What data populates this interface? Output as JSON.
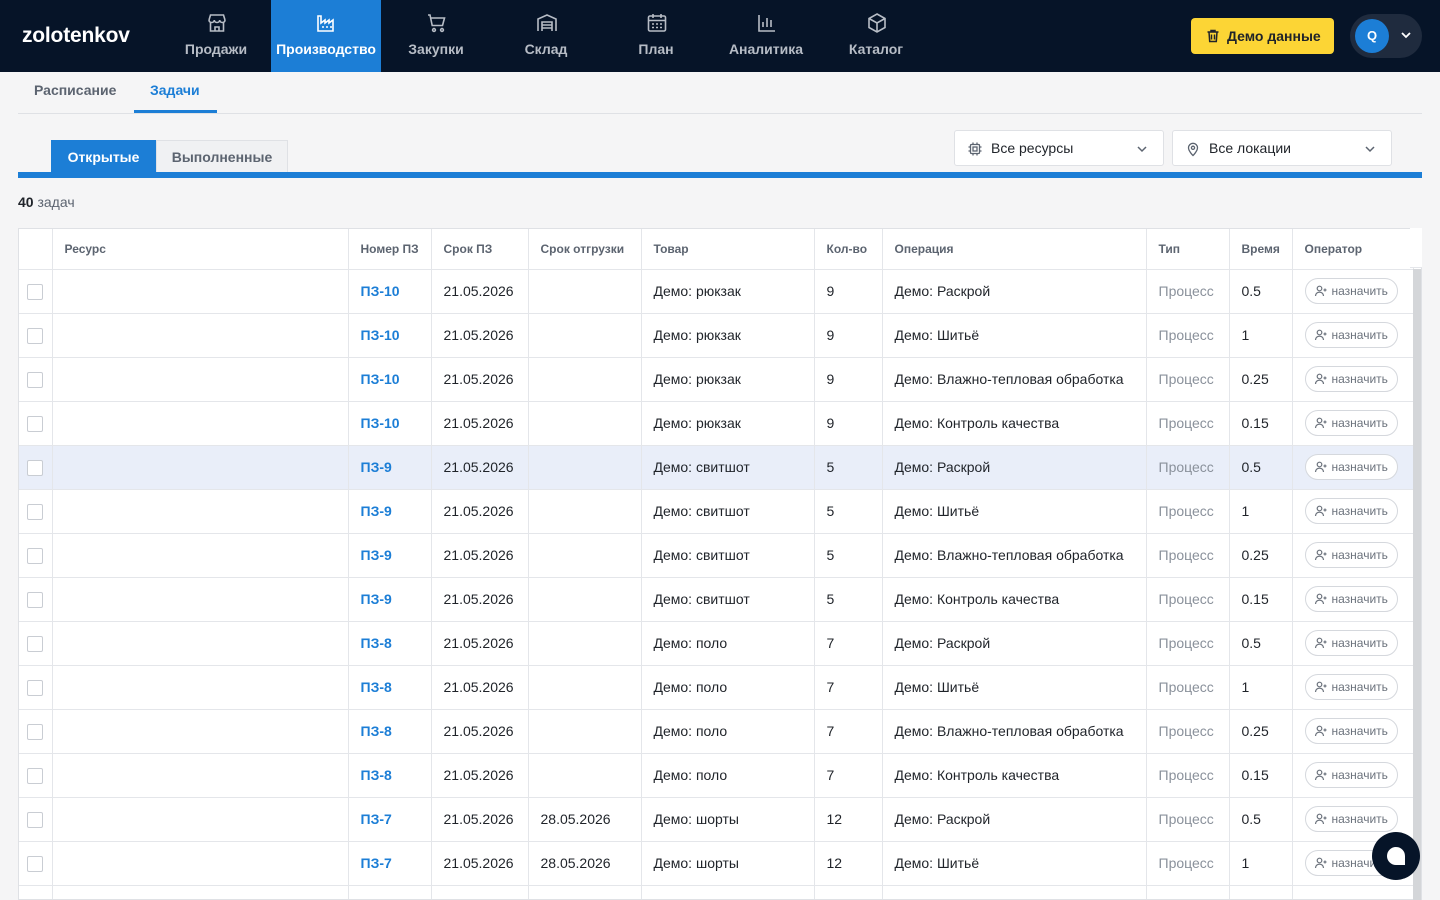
{
  "app": {
    "logo": "zolotenkov"
  },
  "nav": [
    {
      "label": "Продажи",
      "icon": "store-icon",
      "active": false
    },
    {
      "label": "Производство",
      "icon": "factory-icon",
      "active": true
    },
    {
      "label": "Закупки",
      "icon": "cart-icon",
      "active": false
    },
    {
      "label": "Склад",
      "icon": "warehouse-icon",
      "active": false
    },
    {
      "label": "План",
      "icon": "calendar-icon",
      "active": false
    },
    {
      "label": "Аналитика",
      "icon": "bar-chart-icon",
      "active": false
    },
    {
      "label": "Каталог",
      "icon": "box-icon",
      "active": false
    }
  ],
  "header": {
    "demo_button": "Демо данные",
    "avatar_initial": "Q"
  },
  "subtabs": [
    {
      "label": "Расписание",
      "active": false
    },
    {
      "label": "Задачи",
      "active": true
    }
  ],
  "status_filter": {
    "open": "Открытые",
    "done": "Выполненные"
  },
  "filters": {
    "resources": "Все ресурсы",
    "locations": "Все локации"
  },
  "count": {
    "value": "40",
    "label": "задач"
  },
  "table": {
    "columns": [
      "",
      "Ресурс",
      "Номер ПЗ",
      "Срок ПЗ",
      "Срок отгрузки",
      "Товар",
      "Кол-во",
      "Операция",
      "Тип",
      "Время",
      "Оператор"
    ],
    "assign_label": "назначить",
    "rows": [
      {
        "resource": "",
        "order": "ПЗ-10",
        "due": "21.05.2026",
        "ship": "",
        "product": "Демо: рюкзак",
        "qty": "9",
        "operation": "Демо: Раскрой",
        "type": "Процесс",
        "time": "0.5"
      },
      {
        "resource": "",
        "order": "ПЗ-10",
        "due": "21.05.2026",
        "ship": "",
        "product": "Демо: рюкзак",
        "qty": "9",
        "operation": "Демо: Шитьё",
        "type": "Процесс",
        "time": "1"
      },
      {
        "resource": "",
        "order": "ПЗ-10",
        "due": "21.05.2026",
        "ship": "",
        "product": "Демо: рюкзак",
        "qty": "9",
        "operation": "Демо: Влажно-тепловая обработка",
        "type": "Процесс",
        "time": "0.25"
      },
      {
        "resource": "",
        "order": "ПЗ-10",
        "due": "21.05.2026",
        "ship": "",
        "product": "Демо: рюкзак",
        "qty": "9",
        "operation": "Демо: Контроль качества",
        "type": "Процесс",
        "time": "0.15"
      },
      {
        "resource": "",
        "order": "ПЗ-9",
        "due": "21.05.2026",
        "ship": "",
        "product": "Демо: свитшот",
        "qty": "5",
        "operation": "Демо: Раскрой",
        "type": "Процесс",
        "time": "0.5",
        "highlight": true
      },
      {
        "resource": "",
        "order": "ПЗ-9",
        "due": "21.05.2026",
        "ship": "",
        "product": "Демо: свитшот",
        "qty": "5",
        "operation": "Демо: Шитьё",
        "type": "Процесс",
        "time": "1"
      },
      {
        "resource": "",
        "order": "ПЗ-9",
        "due": "21.05.2026",
        "ship": "",
        "product": "Демо: свитшот",
        "qty": "5",
        "operation": "Демо: Влажно-тепловая обработка",
        "type": "Процесс",
        "time": "0.25"
      },
      {
        "resource": "",
        "order": "ПЗ-9",
        "due": "21.05.2026",
        "ship": "",
        "product": "Демо: свитшот",
        "qty": "5",
        "operation": "Демо: Контроль качества",
        "type": "Процесс",
        "time": "0.15"
      },
      {
        "resource": "",
        "order": "ПЗ-8",
        "due": "21.05.2026",
        "ship": "",
        "product": "Демо: поло",
        "qty": "7",
        "operation": "Демо: Раскрой",
        "type": "Процесс",
        "time": "0.5"
      },
      {
        "resource": "",
        "order": "ПЗ-8",
        "due": "21.05.2026",
        "ship": "",
        "product": "Демо: поло",
        "qty": "7",
        "operation": "Демо: Шитьё",
        "type": "Процесс",
        "time": "1"
      },
      {
        "resource": "",
        "order": "ПЗ-8",
        "due": "21.05.2026",
        "ship": "",
        "product": "Демо: поло",
        "qty": "7",
        "operation": "Демо: Влажно-тепловая обработка",
        "type": "Процесс",
        "time": "0.25"
      },
      {
        "resource": "",
        "order": "ПЗ-8",
        "due": "21.05.2026",
        "ship": "",
        "product": "Демо: поло",
        "qty": "7",
        "operation": "Демо: Контроль качества",
        "type": "Процесс",
        "time": "0.15"
      },
      {
        "resource": "",
        "order": "ПЗ-7",
        "due": "21.05.2026",
        "ship": "28.05.2026",
        "product": "Демо: шорты",
        "qty": "12",
        "operation": "Демо: Раскрой",
        "type": "Процесс",
        "time": "0.5"
      },
      {
        "resource": "",
        "order": "ПЗ-7",
        "due": "21.05.2026",
        "ship": "28.05.2026",
        "product": "Демо: шорты",
        "qty": "12",
        "operation": "Демо: Шитьё",
        "type": "Процесс",
        "time": "1"
      },
      {
        "resource": "",
        "order": "",
        "due": "",
        "ship": "",
        "product": "",
        "qty": "",
        "operation": "",
        "type": "",
        "time": ""
      }
    ]
  },
  "colors": {
    "nav_bg": "#061428",
    "accent": "#1c7ed6",
    "demo_button": "#fcd535"
  }
}
